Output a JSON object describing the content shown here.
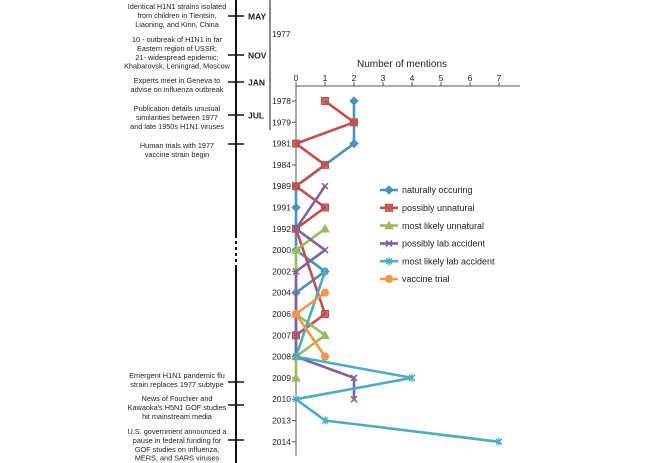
{
  "timeline": {
    "year_label": "1977",
    "months": [
      "MAY",
      "NOV",
      "JAN",
      "JUL"
    ],
    "events": [
      [
        "Identical H1N1 strains isolated",
        "from children in Tientsin,",
        "Liaoning, and Kirin, China"
      ],
      [
        "10 - outbreak of H1N1 in far",
        "Eastern region of USSR;",
        "21- widespread epidemic;",
        "Khabarovsk, Leningrad, Moscow"
      ],
      [
        "Experts meet in Geneva to",
        "advise on influenza outbreak"
      ],
      [
        "Publication details unusual",
        "similarities between 1977",
        "and late 1950s H1N1 viruses"
      ],
      [
        "Human trials with 1977",
        "vaccine strain begin"
      ],
      [
        "Emergent H1N1 pandemic flu",
        "strain replaces 1977 subtype"
      ],
      [
        "News of Fouchier and",
        "Kawaoka's H5N1 GOF studies",
        "hit mainstream media"
      ],
      [
        "U.S. government announced a",
        "pause in federal funding for",
        "GOF studies on influenza,",
        "MERS, and SARS viruses"
      ]
    ]
  },
  "chart_data": {
    "type": "line",
    "xlabel": "Number of mentions",
    "xlim": [
      0,
      7
    ],
    "xticks": [
      0,
      1,
      2,
      3,
      4,
      5,
      6,
      7
    ],
    "years": [
      "1978",
      "1979",
      "1981",
      "1984",
      "1989",
      "1991",
      "1992",
      "2000",
      "2002",
      "2004",
      "2006",
      "2007",
      "2008",
      "2009",
      "2010",
      "2013",
      "2014"
    ],
    "series": [
      {
        "name": "naturally occuring",
        "color": "#4a90c0",
        "marker": "diamond",
        "values": [
          2,
          2,
          2,
          null,
          0,
          0,
          null,
          0,
          1,
          0,
          null,
          null,
          0,
          null,
          null,
          null,
          null
        ]
      },
      {
        "name": "possibly unnatural",
        "color": "#c0504d",
        "marker": "square",
        "values": [
          1,
          2,
          0,
          1,
          0,
          1,
          0,
          null,
          null,
          null,
          1,
          0,
          null,
          null,
          null,
          null,
          null
        ]
      },
      {
        "name": "most likely unnatural",
        "color": "#9bbb59",
        "marker": "triangle",
        "values": [
          null,
          null,
          null,
          null,
          null,
          null,
          1,
          0,
          null,
          null,
          0,
          1,
          0,
          0,
          null,
          null,
          null
        ]
      },
      {
        "name": "possibly lab accident",
        "color": "#7f63a1",
        "marker": "x",
        "values": [
          null,
          null,
          null,
          null,
          1,
          null,
          0,
          1,
          0,
          null,
          null,
          null,
          0,
          2,
          2,
          null,
          null
        ]
      },
      {
        "name": "most likely lab accident",
        "color": "#4bacc6",
        "marker": "star",
        "values": [
          null,
          null,
          null,
          null,
          null,
          null,
          null,
          null,
          1,
          null,
          null,
          null,
          0,
          4,
          0,
          1,
          7
        ]
      },
      {
        "name": "vaccine trial",
        "color": "#f79646",
        "marker": "circle",
        "values": [
          null,
          null,
          null,
          null,
          null,
          null,
          null,
          null,
          null,
          1,
          0,
          null,
          1,
          null,
          null,
          null,
          null
        ]
      }
    ]
  }
}
